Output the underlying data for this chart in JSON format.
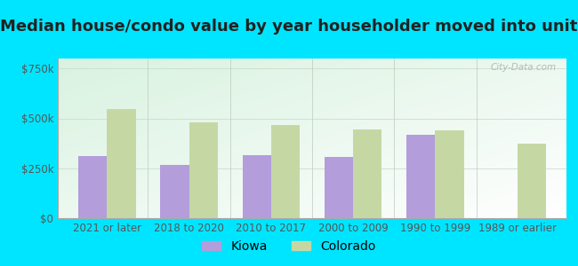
{
  "title": "Median house/condo value by year householder moved into unit",
  "categories": [
    "2021 or later",
    "2018 to 2020",
    "2010 to 2017",
    "2000 to 2009",
    "1990 to 1999",
    "1989 or earlier"
  ],
  "kiowa_values": [
    310000,
    265000,
    315000,
    305000,
    420000,
    0
  ],
  "colorado_values": [
    545000,
    480000,
    465000,
    445000,
    440000,
    375000
  ],
  "kiowa_color": "#b39ddb",
  "colorado_color": "#c5d8a4",
  "background_outer": "#00e5ff",
  "yticks": [
    0,
    250000,
    500000,
    750000
  ],
  "ytick_labels": [
    "$0",
    "$250k",
    "$500k",
    "$750k"
  ],
  "ylim": [
    0,
    800000
  ],
  "bar_width": 0.35,
  "title_fontsize": 13,
  "tick_fontsize": 8.5,
  "legend_fontsize": 10,
  "watermark": "City-Data.com"
}
